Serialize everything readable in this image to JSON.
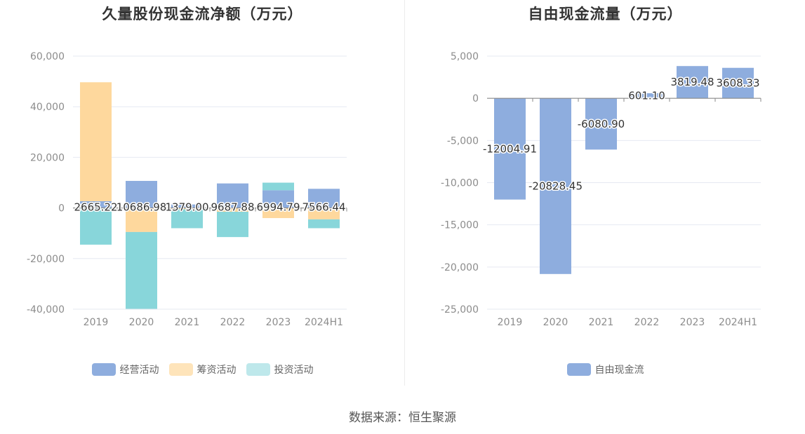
{
  "footer": {
    "source": "数据来源：恒生聚源"
  },
  "colors": {
    "operating": "#8eadde",
    "financing": "#fed89d",
    "investing": "#88d6da",
    "free_cash_flow": "#8eadde"
  },
  "chart_data": [
    {
      "type": "bar",
      "stacked": true,
      "title": "久量股份现金流净额（万元）",
      "categories": [
        "2019",
        "2020",
        "2021",
        "2022",
        "2023",
        "2024H1"
      ],
      "ylim": [
        -40000,
        60000
      ],
      "yticks": [
        60000,
        40000,
        20000,
        0,
        -20000,
        -40000
      ],
      "ytick_labels": [
        "60,000",
        "40,000",
        "20,000",
        "0",
        "-20,000",
        "-40,000"
      ],
      "grid": true,
      "legend_position": "bottom",
      "series": [
        {
          "name": "经营活动",
          "color": "#8eadde",
          "values": [
            2665.22,
            10686.98,
            1379.0,
            9687.88,
            6994.79,
            7566.44
          ]
        },
        {
          "name": "筹资活动",
          "color": "#fed89d",
          "values": [
            47000,
            -9500,
            -500,
            -1500,
            -4000,
            -4500
          ]
        },
        {
          "name": "投资活动",
          "color": "#88d6da",
          "values": [
            -14500,
            -30500,
            -7500,
            -10000,
            3000,
            -3500
          ]
        }
      ],
      "data_labels": [
        "2665.22",
        "10686.98",
        "1379.00",
        "9687.88",
        "6994.79",
        "7566.44"
      ]
    },
    {
      "type": "bar",
      "title": "自由现金流量（万元）",
      "categories": [
        "2019",
        "2020",
        "2021",
        "2022",
        "2023",
        "2024H1"
      ],
      "ylim": [
        -25000,
        5000
      ],
      "yticks": [
        5000,
        0,
        -5000,
        -10000,
        -15000,
        -20000,
        -25000
      ],
      "ytick_labels": [
        "5,000",
        "0",
        "-5,000",
        "-10,000",
        "-15,000",
        "-20,000",
        "-25,000"
      ],
      "grid": true,
      "legend_position": "bottom",
      "series": [
        {
          "name": "自由现金流",
          "color": "#8eadde",
          "values": [
            -12004.91,
            -20828.45,
            -6080.9,
            601.1,
            3819.48,
            3608.33
          ]
        }
      ],
      "data_labels": [
        "-12004.91",
        "-20828.45",
        "-6080.90",
        "601.10",
        "3819.48",
        "3608.33"
      ]
    }
  ]
}
